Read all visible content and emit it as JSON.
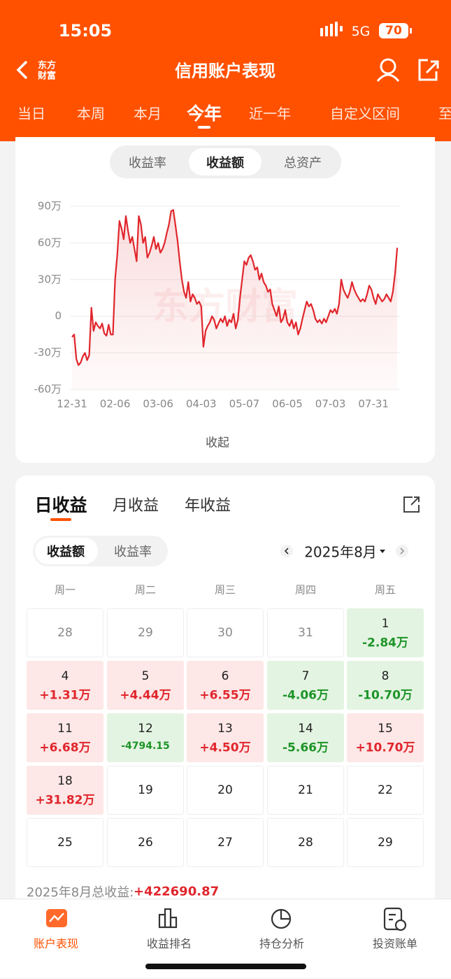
{
  "status_bar": {
    "time": "15:05",
    "network": "5G",
    "battery": "70"
  },
  "header": {
    "logo": [
      "东方",
      "财富"
    ],
    "title": "信用账户表现"
  },
  "period_tabs": {
    "items": [
      "当日",
      "本周",
      "本月",
      "今年",
      "近一年",
      "自定义区间",
      "至"
    ],
    "selected": 3
  },
  "metric_tabs": {
    "items": [
      "收益率",
      "收益额",
      "总资产"
    ],
    "selected": 1
  },
  "chart_data": {
    "type": "line",
    "watermark": "东方财富",
    "color": "#e0262c",
    "grid": true,
    "categories": [
      "12-31",
      null,
      null,
      null,
      null,
      null,
      null,
      null,
      null,
      null,
      null,
      null,
      null,
      null,
      null,
      null,
      null,
      null,
      null,
      null,
      "02-06",
      null,
      null,
      null,
      null,
      null,
      null,
      null,
      null,
      null,
      null,
      null,
      null,
      null,
      null,
      null,
      null,
      null,
      null,
      null,
      "03-06",
      null,
      null,
      null,
      null,
      null,
      null,
      null,
      null,
      null,
      null,
      null,
      null,
      null,
      null,
      null,
      null,
      null,
      null,
      null,
      "04-03",
      null,
      null,
      null,
      null,
      null,
      null,
      null,
      null,
      null,
      null,
      null,
      null,
      null,
      null,
      null,
      null,
      null,
      null,
      null,
      "05-07",
      null,
      null,
      null,
      null,
      null,
      null,
      null,
      null,
      null,
      null,
      null,
      null,
      null,
      null,
      null,
      null,
      null,
      null,
      null,
      "06-05",
      null,
      null,
      null,
      null,
      null,
      null,
      null,
      null,
      null,
      null,
      null,
      null,
      null,
      null,
      null,
      null,
      null,
      null,
      null,
      "07-03",
      null,
      null,
      null,
      null,
      null,
      null,
      null,
      null,
      null,
      null,
      null,
      null,
      null,
      null,
      null,
      null,
      null,
      null,
      null,
      "07-31",
      null,
      null,
      null,
      null,
      null,
      null,
      null,
      null,
      null,
      null,
      null
    ],
    "values": [
      -17,
      -15,
      -35,
      -40,
      -38,
      -33,
      -30,
      -36,
      -32,
      7,
      -12,
      -5,
      -8,
      -10,
      -6,
      -14,
      -16,
      -7,
      -15,
      -15,
      30,
      50,
      78,
      72,
      63,
      82,
      70,
      60,
      65,
      55,
      45,
      82,
      75,
      60,
      65,
      48,
      52,
      58,
      65,
      55,
      60,
      52,
      55,
      60,
      68,
      75,
      86,
      87,
      75,
      62,
      45,
      30,
      20,
      15,
      28,
      12,
      18,
      15,
      10,
      12,
      8,
      -25,
      -12,
      -8,
      -5,
      0,
      -3,
      -10,
      -6,
      -2,
      -5,
      0,
      -8,
      -3,
      -5,
      2,
      -10,
      -3,
      15,
      30,
      45,
      42,
      48,
      50,
      45,
      38,
      40,
      30,
      35,
      28,
      25,
      20,
      22,
      10,
      5,
      0,
      8,
      -5,
      -2,
      5,
      -5,
      -8,
      -3,
      -10,
      -5,
      -15,
      -10,
      -2,
      5,
      12,
      8,
      10,
      5,
      -2,
      -5,
      -3,
      -6,
      -2,
      -5,
      0,
      5,
      3,
      6,
      2,
      10,
      30,
      22,
      18,
      15,
      20,
      28,
      22,
      18,
      15,
      12,
      14,
      12,
      18,
      25,
      22,
      15,
      10,
      18,
      15,
      12,
      14,
      18,
      15,
      12,
      20,
      35,
      56
    ],
    "ylim": [
      -60,
      90
    ],
    "yticks": [
      {
        "value": -60,
        "label": "-60万"
      },
      {
        "value": -30,
        "label": "-30万"
      },
      0,
      {
        "value": 30,
        "label": "30万"
      },
      {
        "value": 60,
        "label": "60万"
      },
      {
        "value": 90,
        "label": "90万"
      }
    ]
  },
  "collapse": "收起",
  "daily": {
    "tabs": [
      "日收益",
      "月收益",
      "年收益"
    ],
    "selected": 0,
    "toggle": [
      "收益额",
      "收益率"
    ],
    "toggle_selected": 0,
    "month": "2025年8月",
    "weekdays": [
      "周一",
      "周二",
      "周三",
      "周四",
      "周五"
    ],
    "weeks": [
      [
        {
          "day": "28",
          "other_month": true
        },
        {
          "day": "29",
          "other_month": true
        },
        {
          "day": "30",
          "other_month": true
        },
        {
          "day": "31",
          "other_month": true
        },
        {
          "day": "1",
          "pnl": "-2.84万"
        }
      ],
      [
        {
          "day": "4",
          "pnl": "+1.31万"
        },
        {
          "day": "5",
          "pnl": "+4.44万"
        },
        {
          "day": "6",
          "pnl": "+6.55万"
        },
        {
          "day": "7",
          "pnl": "-4.06万"
        },
        {
          "day": "8",
          "pnl": "-10.70万"
        }
      ],
      [
        {
          "day": "11",
          "pnl": "+6.68万"
        },
        {
          "day": "12",
          "pnl": "-4794.15"
        },
        {
          "day": "13",
          "pnl": "+4.50万"
        },
        {
          "day": "14",
          "pnl": "-5.66万"
        },
        {
          "day": "15",
          "pnl": "+10.70万"
        }
      ],
      [
        {
          "day": "18",
          "pnl": "+31.82万"
        },
        {
          "day": "19"
        },
        {
          "day": "20"
        },
        {
          "day": "21"
        },
        {
          "day": "22"
        }
      ],
      [
        {
          "day": "25"
        },
        {
          "day": "26"
        },
        {
          "day": "27"
        },
        {
          "day": "28"
        },
        {
          "day": "29"
        }
      ]
    ],
    "summary_label": "2025年8月总收益: ",
    "summary_value": "+422690.87"
  },
  "bottom_nav": {
    "items": [
      "账户表现",
      "收益排名",
      "持仓分析",
      "投资账单"
    ],
    "selected": 0
  }
}
